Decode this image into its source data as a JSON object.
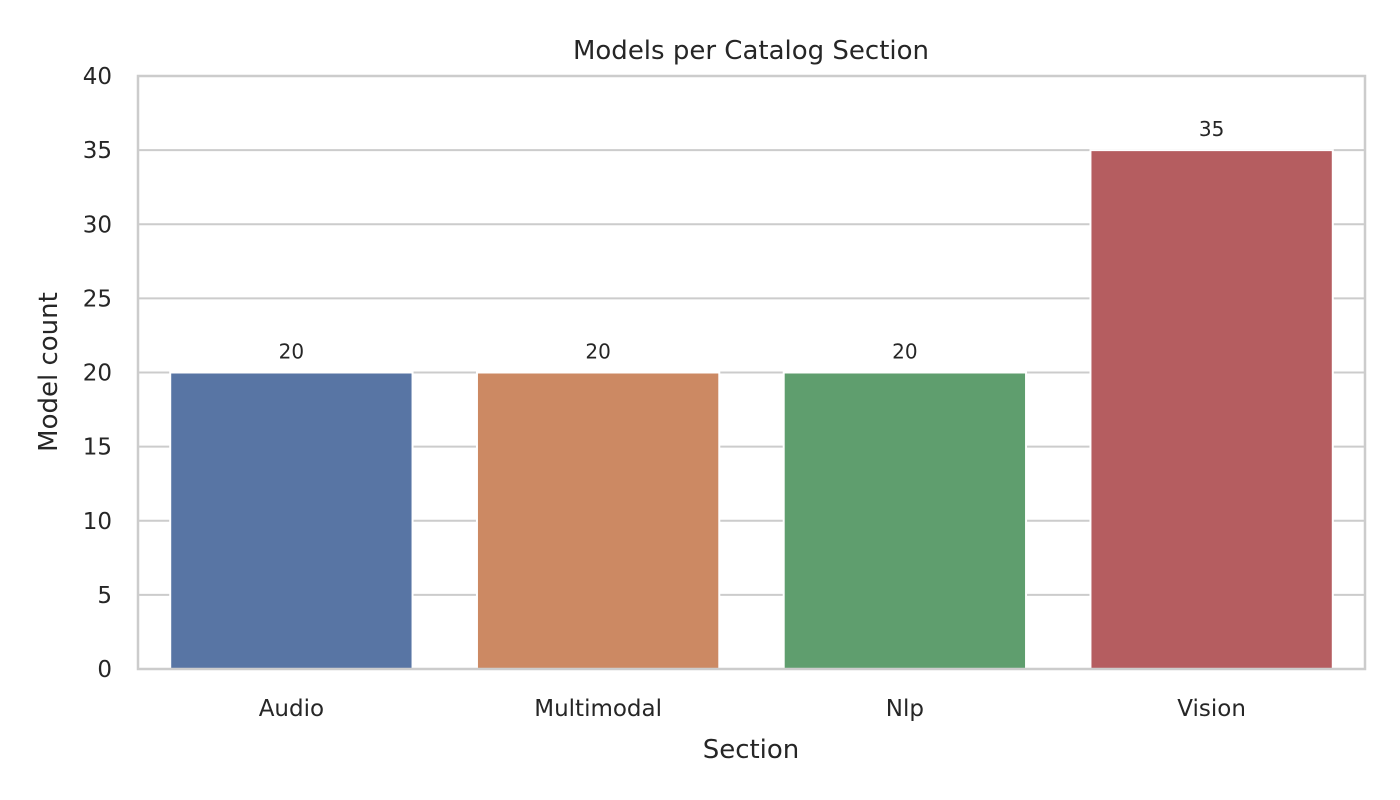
{
  "chart_data": {
    "type": "bar",
    "title": "Models per Catalog Section",
    "xlabel": "Section",
    "ylabel": "Model count",
    "categories": [
      "Audio",
      "Multimodal",
      "Nlp",
      "Vision"
    ],
    "values": [
      20,
      20,
      20,
      35
    ],
    "data_labels": [
      "20",
      "20",
      "20",
      "35"
    ],
    "colors": [
      "#5875a4",
      "#cc8963",
      "#5f9e6e",
      "#b55d60"
    ],
    "ylim": [
      0,
      40
    ],
    "yticks": [
      0,
      5,
      10,
      15,
      20,
      25,
      30,
      35,
      40
    ],
    "ytick_labels": [
      "0",
      "5",
      "10",
      "15",
      "20",
      "25",
      "30",
      "35",
      "40"
    ],
    "grid": true,
    "grid_axis": "y",
    "legend": false
  }
}
